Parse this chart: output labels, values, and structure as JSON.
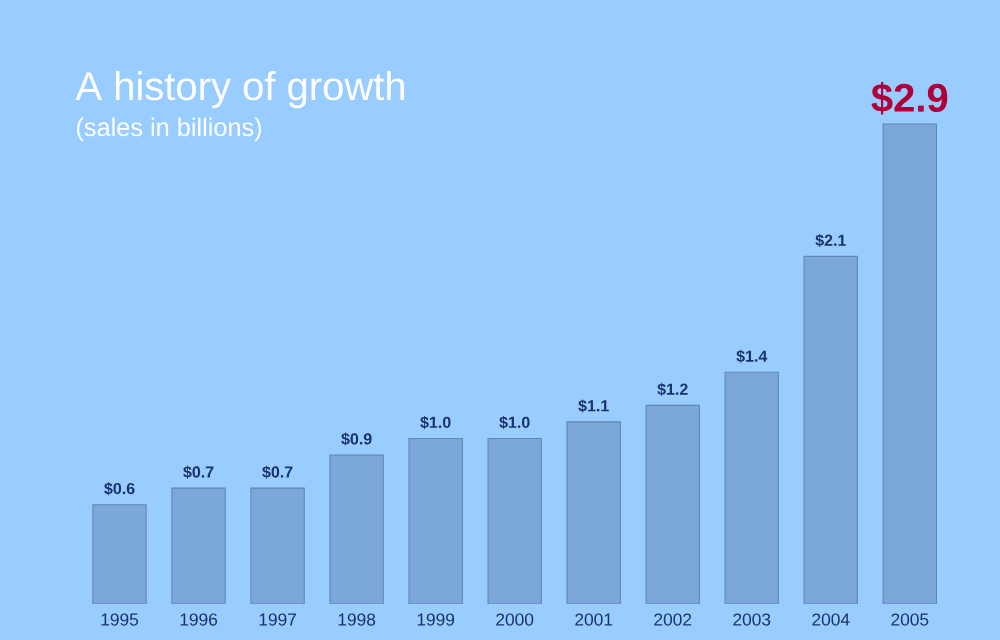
{
  "chart_data": {
    "type": "bar",
    "title": "A history of growth",
    "subtitle": "(sales in billions)",
    "categories": [
      "1995",
      "1996",
      "1997",
      "1998",
      "1999",
      "2000",
      "2001",
      "2002",
      "2003",
      "2004",
      "2005"
    ],
    "values": [
      0.6,
      0.7,
      0.7,
      0.9,
      1.0,
      1.0,
      1.1,
      1.2,
      1.4,
      2.1,
      2.9
    ],
    "value_labels": [
      "$0.6",
      "$0.7",
      "$0.7",
      "$0.9",
      "$1.0",
      "$1.0",
      "$1.1",
      "$1.2",
      "$1.4",
      "$2.1",
      "$2.9"
    ],
    "color": "#7ba7d9"
  }
}
